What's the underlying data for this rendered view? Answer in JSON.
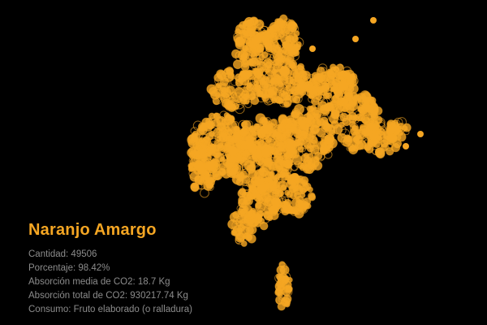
{
  "species": {
    "name": "Naranjo Amargo",
    "quantity": "Cantidad: 49506",
    "percentage": "Porcentaje: 98.42%",
    "mean_co2": "Absorción media de CO2: 18.7 Kg",
    "total_co2": "Absorción total de CO2: 930217.74 Kg",
    "consumption": "Consumo: Fruto elaborado (o ralladura)"
  },
  "colors": {
    "background": "#000000",
    "points": "#f5a623",
    "text": "#8c8c8c"
  }
}
